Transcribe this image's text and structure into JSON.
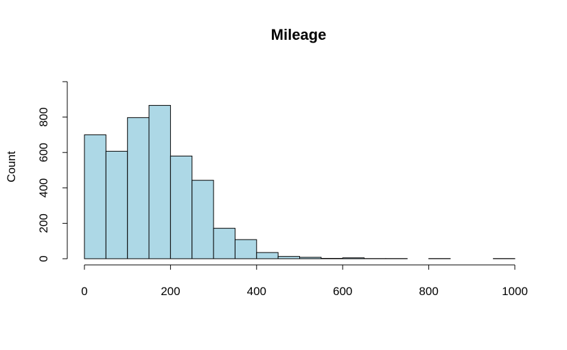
{
  "chart_data": {
    "type": "bar",
    "title": "Mileage",
    "xlabel": "",
    "ylabel": "Count",
    "bin_edges": [
      0,
      50,
      100,
      150,
      200,
      250,
      300,
      350,
      400,
      450,
      500,
      550,
      600,
      650,
      700,
      750,
      800,
      850,
      900,
      950,
      1000
    ],
    "values": [
      700,
      607,
      797,
      866,
      580,
      443,
      172,
      108,
      35,
      13,
      8,
      2,
      5,
      1,
      1,
      0,
      1,
      0,
      0,
      1
    ],
    "xlim": [
      0,
      1000
    ],
    "ylim": [
      0,
      1000
    ],
    "x_ticks": [
      "0",
      "200",
      "400",
      "600",
      "800",
      "1000"
    ],
    "y_ticks": [
      "0",
      "200",
      "400",
      "600",
      "800"
    ],
    "bar_color": "#add8e6",
    "grid": false
  }
}
